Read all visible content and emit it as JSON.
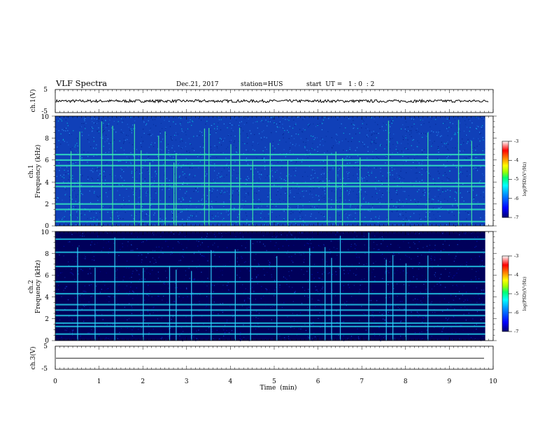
{
  "header": {
    "title": "VLF Spectra",
    "date": "Dec.21, 2017",
    "station": "station=HUS",
    "start_ut": "start  UT =   1 : 0  : 2"
  },
  "colors": {
    "background": "#000040",
    "spectrum_dark": "#00008b",
    "spectrum_mid": "#1e5fd0",
    "spectrum_bright": "#00e0c0",
    "colormap": [
      "#00007f",
      "#0000ff",
      "#0080ff",
      "#00ffff",
      "#00ff80",
      "#80ff00",
      "#ffff00",
      "#ff8000",
      "#ff0000",
      "#ffffff"
    ]
  },
  "chart_data": [
    {
      "type": "line",
      "panel": "ch.1(V)",
      "ylabel": "ch.1(V)",
      "ylim": [
        -5,
        5
      ],
      "ytick_labels": [
        "5",
        "-5"
      ],
      "description_values": {
        "mean_level": 0.0,
        "noise_amplitude": 0.6
      },
      "x_range_min": [
        0,
        10
      ]
    },
    {
      "type": "heatmap",
      "panel": "ch.1 spectrogram",
      "ylabel_line1": "ch.1",
      "ylabel_line2": "Frequency (kHz)",
      "ylim": [
        0,
        10
      ],
      "ytick_labels": [
        "0",
        "2",
        "4",
        "6",
        "8",
        "10"
      ],
      "colorbar": {
        "label": "log(PSD)(V²/Hz)",
        "range": [
          -7,
          -3
        ],
        "tick_labels": [
          "-3",
          "-4",
          "-5",
          "-6",
          "-7"
        ]
      },
      "horizontal_bands_khz": [
        0.4,
        1.5,
        2.0,
        3.6,
        3.9,
        5.5,
        6.0,
        6.5
      ],
      "vertical_burst_times_min": [
        0.35,
        0.55,
        1.05,
        1.3,
        1.8,
        1.95,
        2.15,
        2.35,
        2.5,
        2.7,
        2.75,
        3.4,
        3.5,
        4.0,
        4.2,
        4.5,
        4.9,
        5.3,
        6.2,
        6.4,
        6.55,
        6.95,
        7.6,
        8.5,
        9.2,
        9.5
      ],
      "background_level": -6.0
    },
    {
      "type": "heatmap",
      "panel": "ch.2 spectrogram",
      "ylabel_line1": "ch.2",
      "ylabel_line2": "Frequency (kHz)",
      "ylim": [
        0,
        10
      ],
      "ytick_labels": [
        "0",
        "2",
        "4",
        "6",
        "8",
        "10"
      ],
      "colorbar": {
        "label": "log(PSD)(V²/Hz)",
        "range": [
          -7,
          -3
        ],
        "tick_labels": [
          "-3",
          "-4",
          "-5",
          "-6",
          "-7"
        ]
      },
      "horizontal_bands_khz": [
        0.6,
        1.3,
        1.6,
        2.3,
        2.8,
        3.3,
        4.3,
        5.4,
        6.8,
        8.1,
        9.3
      ],
      "vertical_burst_times_min": [
        0.5,
        0.9,
        1.35,
        2.0,
        2.6,
        2.75,
        3.1,
        3.55,
        4.1,
        4.45,
        5.05,
        5.8,
        6.15,
        6.3,
        6.5,
        7.15,
        7.55,
        7.7,
        8.0,
        8.5
      ],
      "background_level": -6.8
    },
    {
      "type": "line",
      "panel": "ch.3(V)",
      "ylabel": "ch.3(V)",
      "ylim": [
        -5,
        5
      ],
      "ytick_labels": [
        "5",
        "-5"
      ],
      "description_values": {
        "mean_level": -0.2,
        "noise_amplitude": 0.0
      }
    }
  ],
  "x_axis": {
    "label": "Time  (min)",
    "range": [
      0,
      10
    ],
    "tick_labels": [
      "0",
      "1",
      "2",
      "3",
      "4",
      "5",
      "6",
      "7",
      "8",
      "9",
      "10"
    ]
  }
}
